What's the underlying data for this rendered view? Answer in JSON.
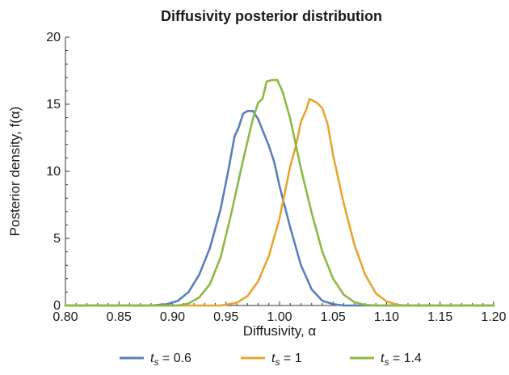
{
  "chart_data": {
    "type": "line",
    "title": "Diffusivity posterior distribution",
    "xlabel": "Diffusivity, α",
    "ylabel": "Posterior density, f(α)",
    "xlim": [
      0.8,
      1.2
    ],
    "ylim": [
      0,
      20
    ],
    "x_ticks": [
      "0.80",
      "0.85",
      "0.90",
      "0.95",
      "1.00",
      "1.05",
      "1.10",
      "1.15",
      "1.20"
    ],
    "y_ticks": [
      "0",
      "5",
      "10",
      "15",
      "20"
    ],
    "grid": false,
    "legend_position": "bottom",
    "series": [
      {
        "name": "t_s = 0.6",
        "legend_label": {
          "var": "t",
          "sub": "s",
          "value": " = 0.6"
        },
        "color": "#5b7fb8",
        "points": [
          [
            0.8,
            0.0
          ],
          [
            0.88,
            0.0
          ],
          [
            0.895,
            0.1
          ],
          [
            0.905,
            0.35
          ],
          [
            0.915,
            1.0
          ],
          [
            0.925,
            2.3
          ],
          [
            0.935,
            4.3
          ],
          [
            0.945,
            7.2
          ],
          [
            0.952,
            10.0
          ],
          [
            0.958,
            12.6
          ],
          [
            0.962,
            13.3
          ],
          [
            0.966,
            14.3
          ],
          [
            0.97,
            14.5
          ],
          [
            0.975,
            14.5
          ],
          [
            0.98,
            13.9
          ],
          [
            0.985,
            12.9
          ],
          [
            0.99,
            11.9
          ],
          [
            0.995,
            10.7
          ],
          [
            1.0,
            8.9
          ],
          [
            1.01,
            5.8
          ],
          [
            1.02,
            3.0
          ],
          [
            1.03,
            1.2
          ],
          [
            1.04,
            0.35
          ],
          [
            1.05,
            0.1
          ],
          [
            1.06,
            0.0
          ],
          [
            1.2,
            0.0
          ]
        ]
      },
      {
        "name": "t_s = 1",
        "legend_label": {
          "var": "t",
          "sub": "s",
          "value": " = 1"
        },
        "color": "#e8a431",
        "points": [
          [
            0.8,
            0.0
          ],
          [
            0.945,
            0.0
          ],
          [
            0.96,
            0.2
          ],
          [
            0.97,
            0.7
          ],
          [
            0.98,
            1.8
          ],
          [
            0.99,
            3.7
          ],
          [
            1.0,
            6.5
          ],
          [
            1.01,
            10.4
          ],
          [
            1.015,
            11.8
          ],
          [
            1.02,
            13.7
          ],
          [
            1.025,
            14.6
          ],
          [
            1.028,
            15.4
          ],
          [
            1.035,
            15.1
          ],
          [
            1.04,
            14.7
          ],
          [
            1.045,
            13.5
          ],
          [
            1.05,
            11.2
          ],
          [
            1.06,
            7.6
          ],
          [
            1.07,
            4.5
          ],
          [
            1.08,
            2.3
          ],
          [
            1.09,
            0.9
          ],
          [
            1.1,
            0.3
          ],
          [
            1.11,
            0.05
          ],
          [
            1.12,
            0.0
          ],
          [
            1.2,
            0.0
          ]
        ]
      },
      {
        "name": "t_s = 1.4",
        "legend_label": {
          "var": "t",
          "sub": "s",
          "value": " = 1.4"
        },
        "color": "#8db943",
        "points": [
          [
            0.8,
            0.0
          ],
          [
            0.905,
            0.0
          ],
          [
            0.915,
            0.15
          ],
          [
            0.925,
            0.6
          ],
          [
            0.935,
            1.6
          ],
          [
            0.945,
            3.6
          ],
          [
            0.955,
            6.9
          ],
          [
            0.965,
            10.5
          ],
          [
            0.975,
            13.9
          ],
          [
            0.98,
            15.1
          ],
          [
            0.984,
            15.4
          ],
          [
            0.988,
            16.7
          ],
          [
            0.993,
            16.8
          ],
          [
            0.998,
            16.8
          ],
          [
            1.003,
            15.9
          ],
          [
            1.01,
            13.9
          ],
          [
            1.02,
            10.2
          ],
          [
            1.03,
            6.9
          ],
          [
            1.04,
            4.0
          ],
          [
            1.05,
            2.0
          ],
          [
            1.06,
            0.8
          ],
          [
            1.07,
            0.25
          ],
          [
            1.08,
            0.05
          ],
          [
            1.09,
            0.0
          ],
          [
            1.2,
            0.0
          ]
        ]
      }
    ]
  }
}
